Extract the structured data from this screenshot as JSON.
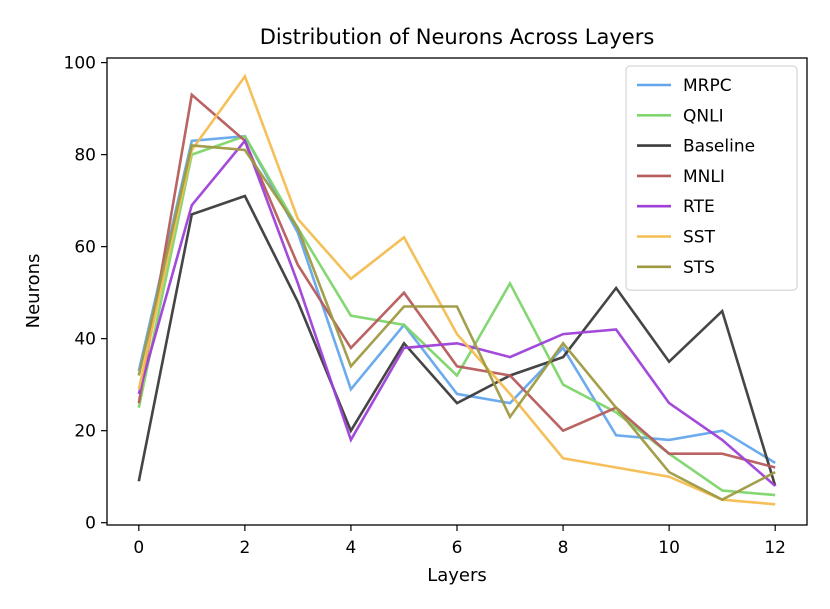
{
  "chart_data": {
    "type": "line",
    "title": "Distribution of Neurons Across Layers",
    "xlabel": "Layers",
    "ylabel": "Neurons",
    "xlim": [
      -0.6,
      12.6
    ],
    "ylim": [
      -0.5,
      101
    ],
    "xticks": [
      0,
      2,
      4,
      6,
      8,
      10,
      12
    ],
    "yticks": [
      0,
      20,
      40,
      60,
      80,
      100
    ],
    "grid": false,
    "legend": "top-right",
    "x": [
      0,
      1,
      2,
      3,
      4,
      5,
      6,
      7,
      8,
      9,
      10,
      11,
      12
    ],
    "series": [
      {
        "name": "MRPC",
        "color": "#64a6ec",
        "values": [
          33,
          83,
          84,
          63,
          29,
          43,
          28,
          26,
          38,
          19,
          18,
          20,
          13
        ]
      },
      {
        "name": "QNLI",
        "color": "#7ed56b",
        "values": [
          25,
          80,
          84,
          64,
          45,
          43,
          32,
          52,
          30,
          24,
          15,
          7,
          6
        ]
      },
      {
        "name": "Baseline",
        "color": "#3b3b3b",
        "values": [
          9,
          67,
          71,
          48,
          20,
          39,
          26,
          32,
          36,
          51,
          35,
          46,
          8
        ]
      },
      {
        "name": "MNLI",
        "color": "#b65c5c",
        "values": [
          26,
          93,
          83,
          56,
          38,
          50,
          34,
          32,
          20,
          25,
          15,
          15,
          12
        ]
      },
      {
        "name": "RTE",
        "color": "#9e40d8",
        "values": [
          28,
          69,
          83,
          52,
          18,
          38,
          39,
          36,
          41,
          42,
          26,
          18,
          8
        ]
      },
      {
        "name": "SST",
        "color": "#f4bd50",
        "values": [
          29,
          81,
          97,
          66,
          53,
          62,
          41,
          28,
          14,
          12,
          10,
          5,
          4
        ]
      },
      {
        "name": "STS",
        "color": "#9e9a42",
        "values": [
          32,
          82,
          81,
          64,
          34,
          47,
          47,
          23,
          39,
          25,
          11,
          5,
          11
        ]
      }
    ]
  }
}
